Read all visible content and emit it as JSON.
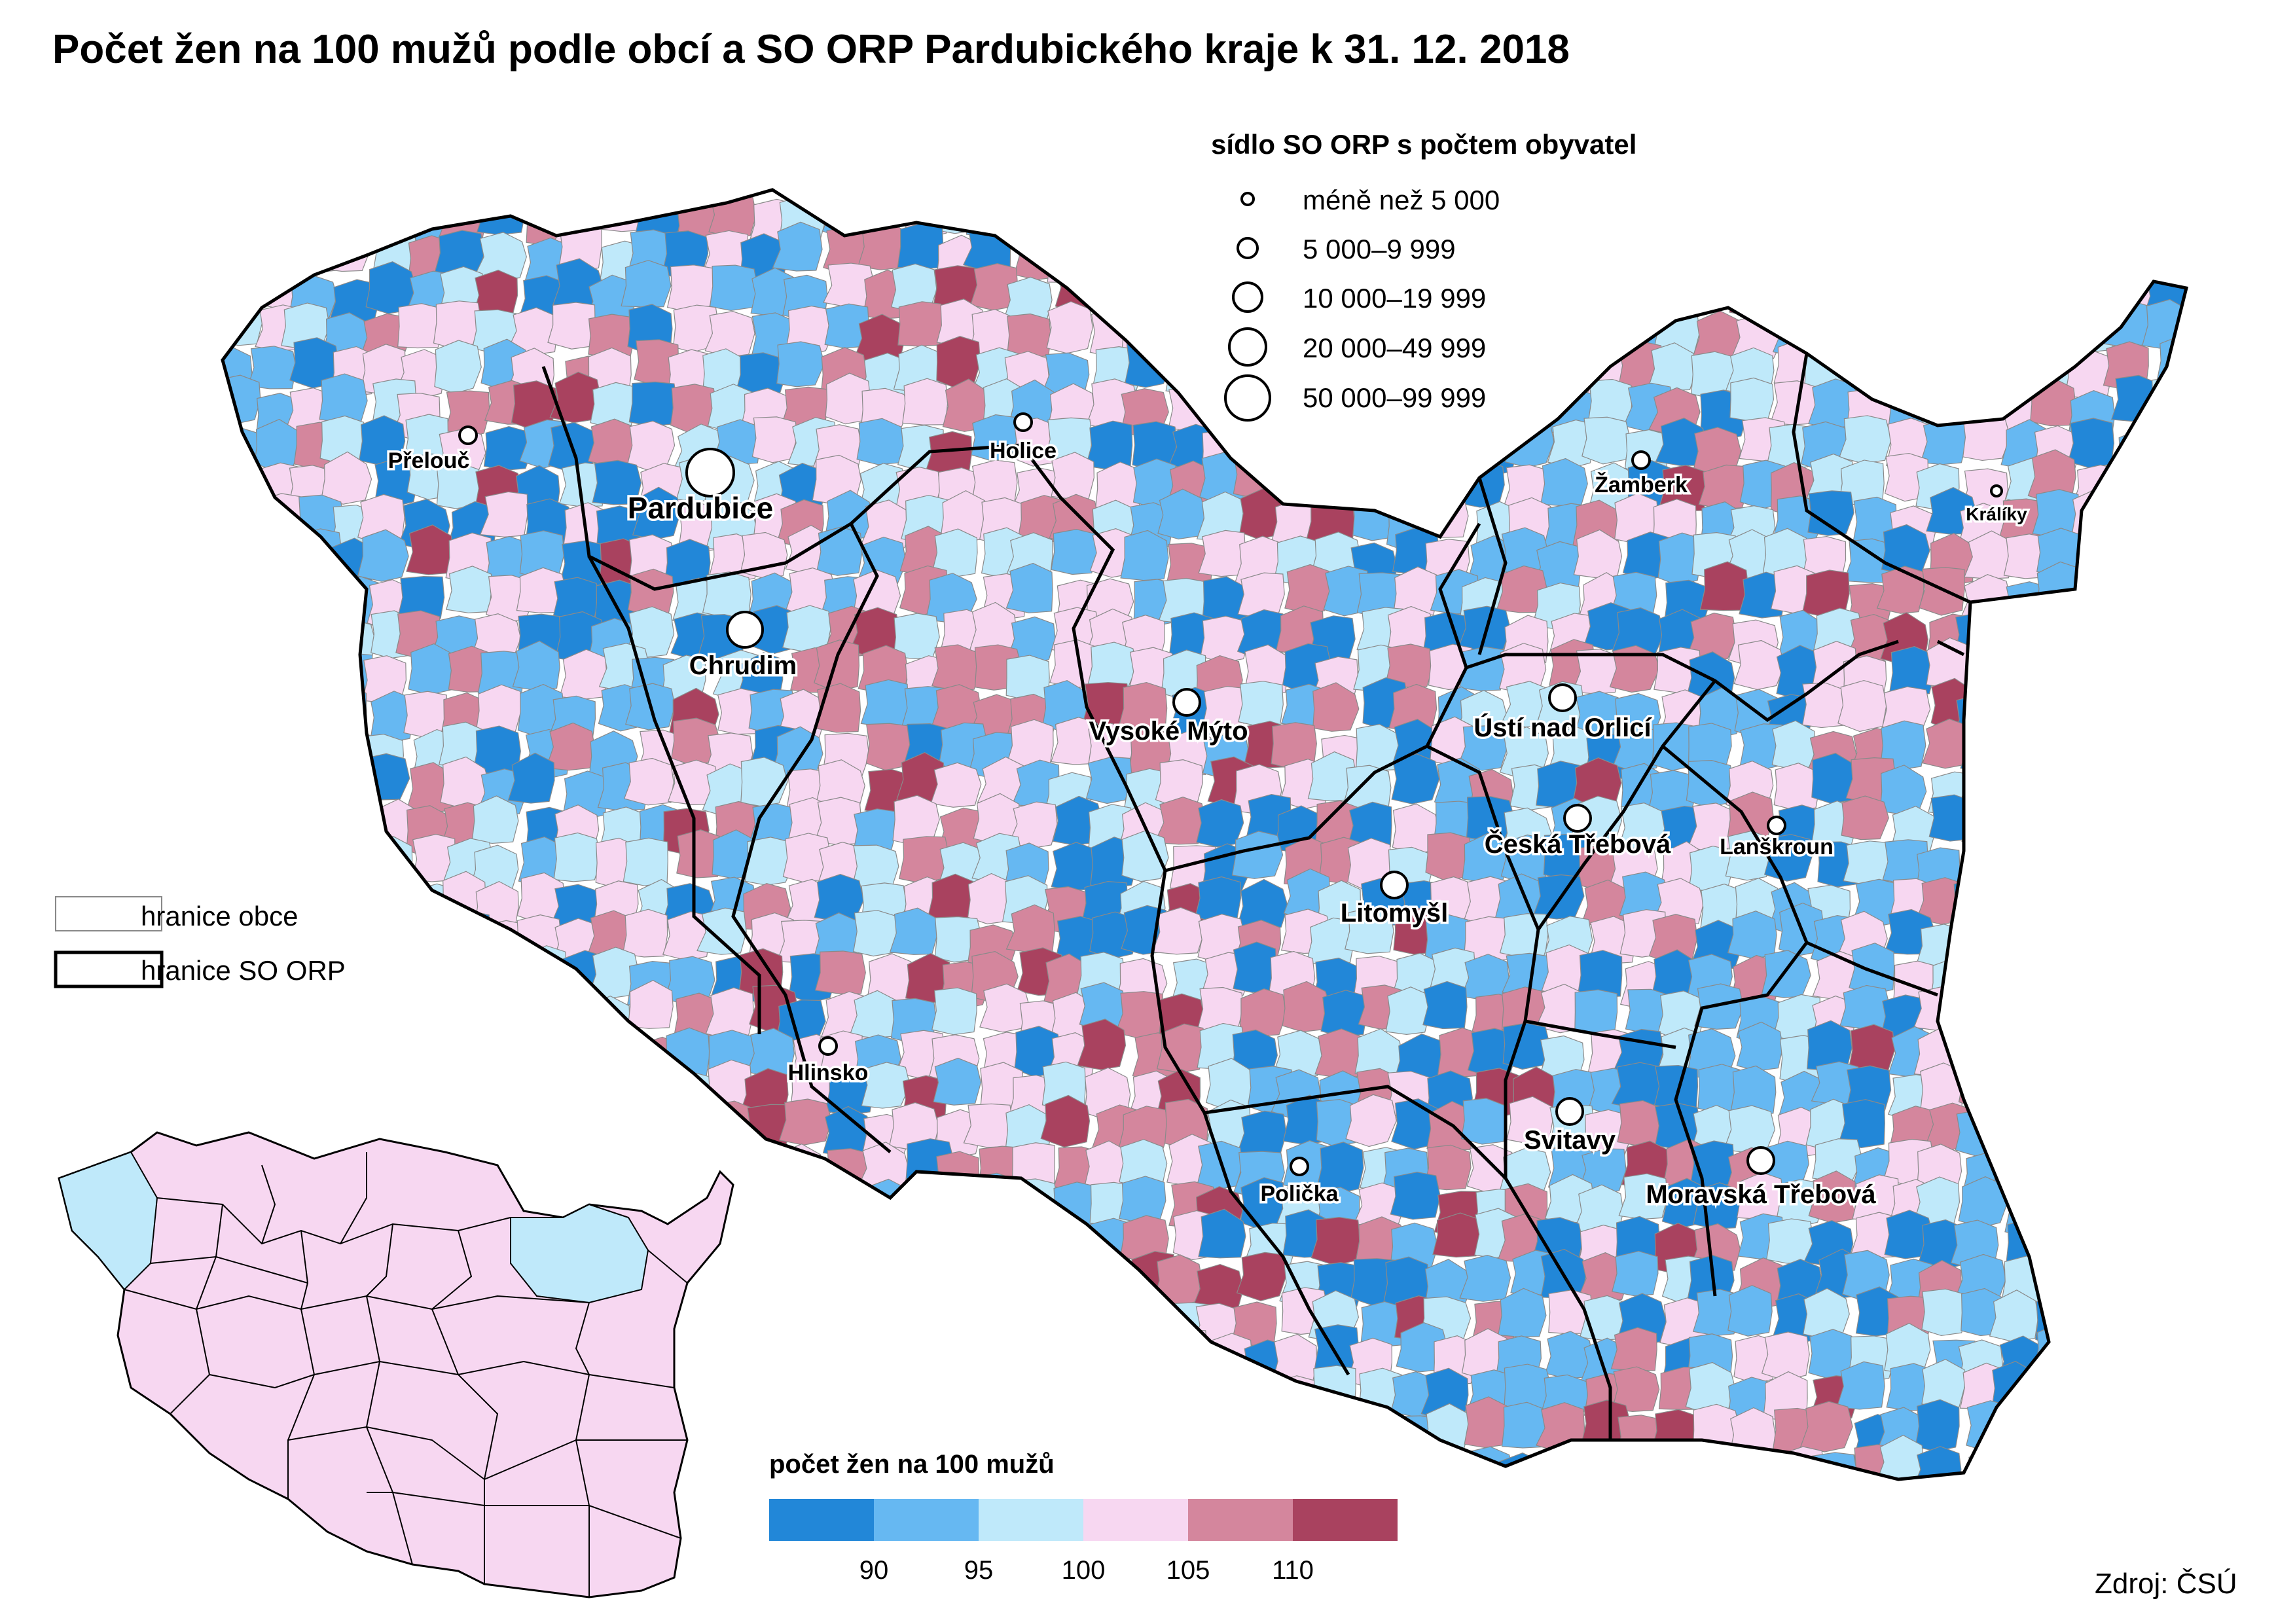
{
  "title": "Počet žen na 100 mužů podle obcí a SO ORP Pardubického kraje k 31. 12. 2018",
  "source": "Zdroj: ČSÚ",
  "colors": {
    "lt90": "#2287d8",
    "c90_95": "#66b8f2",
    "c95_100": "#bfe9fa",
    "c100_105": "#f7d7f1",
    "c105_110": "#d4869d",
    "gt110": "#a9425f",
    "border": "#000000"
  },
  "symbol_legend": {
    "title": "sídlo SO ORP s počtem obyvatel",
    "items": [
      "méně než 5 000",
      "5 000–9 999",
      "10 000–19 999",
      "20 000–49 999",
      "50 000–99 999"
    ]
  },
  "boundary_legend": {
    "municipality": "hranice obce",
    "orp": "hranice SO ORP"
  },
  "color_legend": {
    "title": "počet žen na 100 mužů",
    "breaks": [
      "90",
      "95",
      "100",
      "105",
      "110"
    ]
  },
  "cities": [
    {
      "name": "Přelouč",
      "size_class": 1,
      "label_size": "small"
    },
    {
      "name": "Pardubice",
      "size_class": 4,
      "label_size": "large"
    },
    {
      "name": "Holice",
      "size_class": 1,
      "label_size": "small"
    },
    {
      "name": "Chrudim",
      "size_class": 3,
      "label_size": "medium"
    },
    {
      "name": "Vysoké Mýto",
      "size_class": 2,
      "label_size": "medium"
    },
    {
      "name": "Žamberk",
      "size_class": 1,
      "label_size": "small"
    },
    {
      "name": "Králíky",
      "size_class": 0,
      "label_size": "xsmall"
    },
    {
      "name": "Ústí nad Orlicí",
      "size_class": 2,
      "label_size": "medium"
    },
    {
      "name": "Česká Třebová",
      "size_class": 2,
      "label_size": "medium"
    },
    {
      "name": "Lanškroun",
      "size_class": 1,
      "label_size": "small"
    },
    {
      "name": "Litomyšl",
      "size_class": 2,
      "label_size": "medium"
    },
    {
      "name": "Hlinsko",
      "size_class": 1,
      "label_size": "small"
    },
    {
      "name": "Svitavy",
      "size_class": 2,
      "label_size": "medium"
    },
    {
      "name": "Polička",
      "size_class": 1,
      "label_size": "small"
    },
    {
      "name": "Moravská Třebová",
      "size_class": 2,
      "label_size": "medium"
    }
  ]
}
